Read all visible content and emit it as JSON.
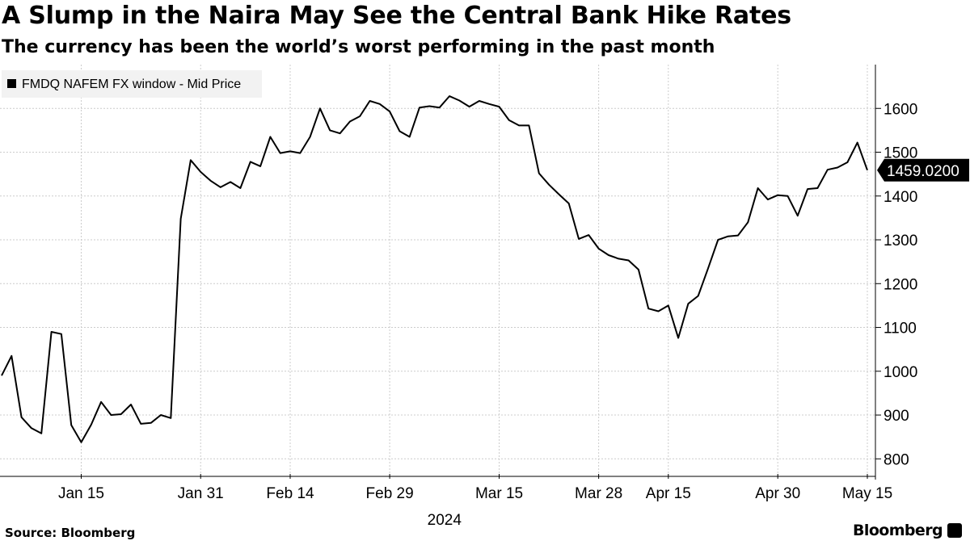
{
  "header": {
    "title": "A Slump in the Naira May See the Central Bank Hike Rates",
    "subtitle": "The currency has been the world’s worst performing in the past month"
  },
  "footer": {
    "source": "Source: Bloomberg",
    "logo": "Bloomberg"
  },
  "colors": {
    "line": "#000000",
    "grid": "#cccccc",
    "legend_bg": "#f2f2f2",
    "callout_bg": "#000000"
  },
  "chart_data": {
    "type": "line",
    "title": "A Slump in the Naira May See the Central Bank Hike Rates",
    "subtitle": "The currency has been the world’s worst performing in the past month",
    "xlabel": "2024",
    "ylabel": "",
    "ylim": [
      760,
      1700
    ],
    "y_ticks": [
      800,
      900,
      1000,
      1100,
      1200,
      1300,
      1400,
      1500,
      1600
    ],
    "x_ticks": [
      {
        "label": "Jan 15",
        "index": 8
      },
      {
        "label": "Jan 31",
        "index": 20
      },
      {
        "label": "Feb 14",
        "index": 29
      },
      {
        "label": "Feb 29",
        "index": 39
      },
      {
        "label": "Mar 15",
        "index": 50
      },
      {
        "label": "Mar 28",
        "index": 60
      },
      {
        "label": "Apr 15",
        "index": 67
      },
      {
        "label": "Apr 30",
        "index": 78
      },
      {
        "label": "May 15",
        "index": 87
      }
    ],
    "x_year_label": "2024",
    "grid": true,
    "legend_position": "top-left",
    "last_value_label": "1459.0200",
    "series": [
      {
        "name": "FMDQ NAFEM FX window - Mid Price",
        "values": [
          990,
          1035,
          895,
          870,
          858,
          1090,
          1085,
          877,
          838,
          878,
          930,
          900,
          902,
          924,
          880,
          882,
          900,
          893,
          1348,
          1482,
          1455,
          1435,
          1420,
          1432,
          1418,
          1478,
          1468,
          1535,
          1498,
          1502,
          1498,
          1535,
          1600,
          1550,
          1543,
          1570,
          1582,
          1617,
          1610,
          1593,
          1548,
          1535,
          1602,
          1605,
          1602,
          1628,
          1618,
          1604,
          1617,
          1610,
          1604,
          1573,
          1561,
          1561,
          1452,
          1426,
          1404,
          1383,
          1302,
          1311,
          1280,
          1265,
          1257,
          1253,
          1232,
          1143,
          1137,
          1150,
          1076,
          1154,
          1172,
          1235,
          1300,
          1308,
          1310,
          1340,
          1418,
          1392,
          1402,
          1400,
          1355,
          1416,
          1418,
          1460,
          1465,
          1477,
          1522,
          1459
        ]
      }
    ]
  }
}
